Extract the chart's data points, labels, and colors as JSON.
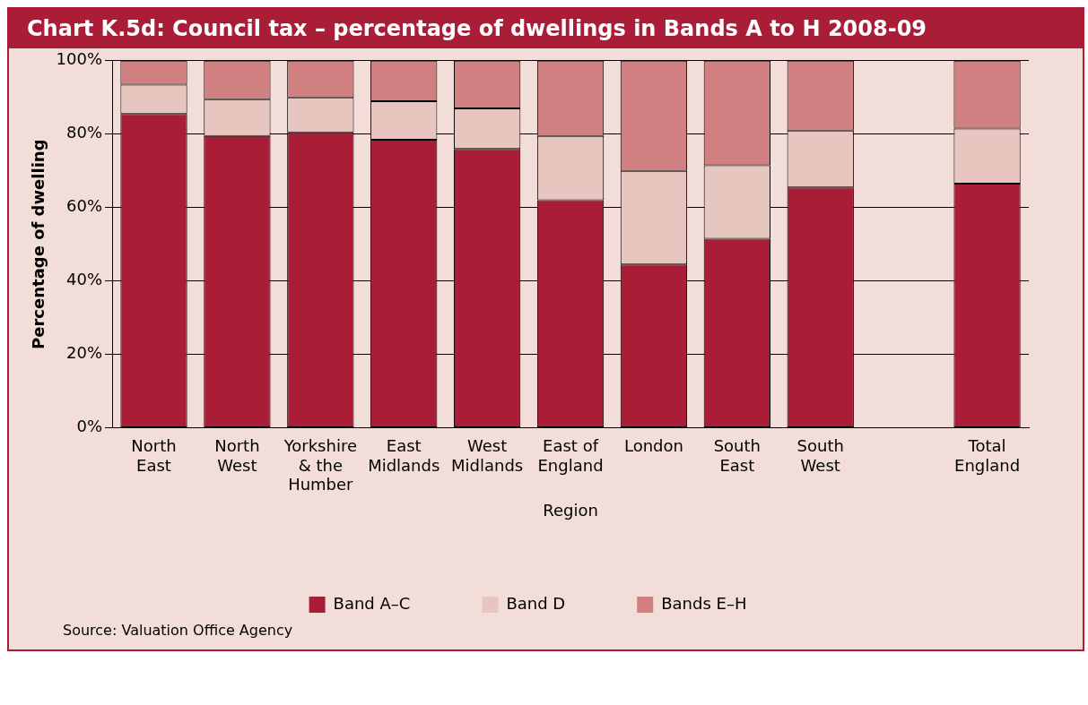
{
  "chart_data": {
    "type": "bar",
    "title": "Chart K.5d: Council tax – percentage of dwellings in Bands A to H 2008-09",
    "xlabel": "Region",
    "ylabel": "Percentage of dwelling",
    "categories": [
      "North East",
      "North West",
      "Yorkshire & the Humber",
      "East Midlands",
      "West Midlands",
      "East of England",
      "London",
      "South East",
      "South West",
      null,
      "Total England"
    ],
    "series": [
      {
        "name": "Band A–C",
        "color": "#a91d37",
        "values": [
          85.5,
          79.5,
          80.5,
          78.5,
          76,
          62,
          44.5,
          51.5,
          65.5,
          null,
          66.5
        ]
      },
      {
        "name": "Band D",
        "color": "#e8c6c0",
        "values": [
          8,
          10,
          9.5,
          10.5,
          11,
          17.5,
          25.5,
          20,
          15.5,
          null,
          15
        ]
      },
      {
        "name": "Bands E–H",
        "color": "#d08080",
        "values": [
          6.5,
          10.5,
          10,
          11,
          13,
          20.5,
          30,
          28.5,
          19,
          null,
          18.5
        ]
      }
    ],
    "stacked": true,
    "ylim": [
      0,
      100
    ],
    "yticks": [
      {
        "value": 0,
        "label": "0%"
      },
      {
        "value": 20,
        "label": "20%"
      },
      {
        "value": 40,
        "label": "40%"
      },
      {
        "value": 60,
        "label": "60%"
      },
      {
        "value": 80,
        "label": "80%"
      },
      {
        "value": 100,
        "label": "100%"
      }
    ],
    "grid": "y",
    "legend": "bottom",
    "annotations": [
      "Source: Valuation Office Agency"
    ]
  }
}
